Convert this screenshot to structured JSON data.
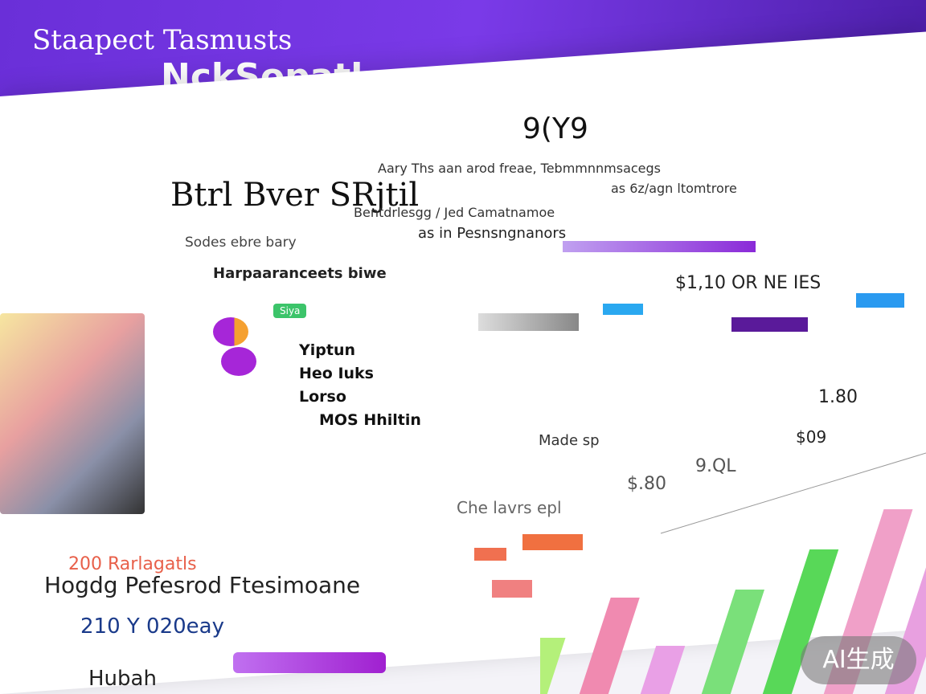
{
  "header": {
    "title": "Staapect Tasmusts",
    "subtitle": "NckSopatl"
  },
  "card": {
    "title": "Btrl Bver SRjtil",
    "title_tag": "9(Y9",
    "lines": [
      "Aary Ths aan arod freae, Tebmmnnmsacegs",
      "Bentdrlesgg / Jed Camatnamoe",
      "as 6z/agn ltomtrore"
    ],
    "tags": [
      "Sodes ebre bary",
      "Harpaaranceets biwe",
      "as in Pesnsngnanors"
    ]
  },
  "badge": "Siya",
  "legend": [
    "Yiptun",
    "Heo Iuks",
    "Lorso",
    "MOS Hhiltin"
  ],
  "stats": [
    "$1,10 OR NE IES",
    "1.80",
    "$09",
    "9.QL",
    "$.80"
  ],
  "labels": [
    "Made sp",
    "Che lavrs epl"
  ],
  "bottom": {
    "title": "200 Rarlagatls",
    "subtitle": "Hogdg Pefesrod Ftesimoane",
    "date": "210 Y 020eay",
    "foot": "Hubah"
  },
  "bars": {
    "values": [
      70,
      120,
      60,
      130,
      180,
      230,
      280
    ],
    "colors": [
      "#b4f07a",
      "#f08ab0",
      "#e9a0e6",
      "#7ae07a",
      "#58d858",
      "#f0a0c8",
      "#e8a0e0"
    ]
  },
  "watermark": "AI生成"
}
